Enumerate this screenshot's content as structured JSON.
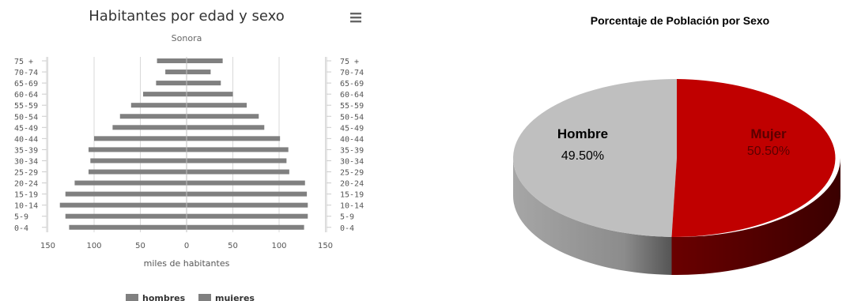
{
  "chart_data": [
    {
      "type": "bar",
      "orientation": "horizontal-population-pyramid",
      "title": "Habitantes por edad y sexo",
      "subtitle": "Sonora",
      "xlabel": "miles de habitantes",
      "menu_icon": "hamburger-menu-icon",
      "categories": [
        "0-4",
        "5-9",
        "10-14",
        "15-19",
        "20-24",
        "25-29",
        "30-34",
        "35-39",
        "40-44",
        "45-49",
        "50-54",
        "55-59",
        "60-64",
        "65-69",
        "70-74",
        "75 +"
      ],
      "x_ticks": [
        "150",
        "100",
        "50",
        "0",
        "50",
        "100",
        "150"
      ],
      "xlim": [
        -150,
        150
      ],
      "grid": true,
      "legend_position": "bottom",
      "series": [
        {
          "name": "hombres",
          "color": "#808080",
          "values": [
            127,
            131,
            137,
            131,
            121,
            106,
            104,
            106,
            100,
            80,
            72,
            60,
            47,
            33,
            23,
            32
          ]
        },
        {
          "name": "mujeres",
          "color": "#808080",
          "values": [
            127,
            131,
            131,
            130,
            128,
            111,
            108,
            110,
            101,
            84,
            78,
            65,
            50,
            37,
            26,
            39
          ]
        }
      ]
    },
    {
      "type": "pie",
      "style": "3d",
      "title": "Porcentaje de Población por Sexo",
      "slices": [
        {
          "label": "Mujer",
          "value": 50.5,
          "pct_label": "50.50%",
          "color": "#c00000",
          "label_color": "#5a0000"
        },
        {
          "label": "Hombre",
          "value": 49.5,
          "pct_label": "49.50%",
          "color": "#bfbfbf",
          "label_color": "#000000"
        }
      ]
    }
  ]
}
